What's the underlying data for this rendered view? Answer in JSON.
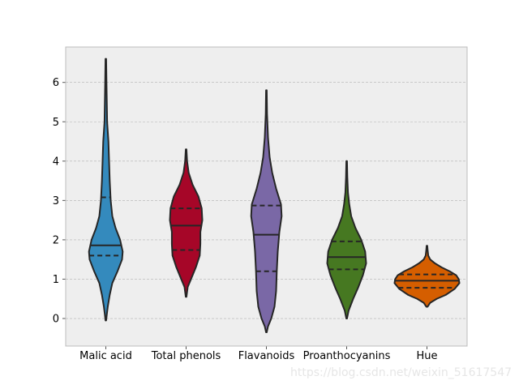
{
  "chart_data": {
    "type": "violin",
    "title": "",
    "xlabel": "",
    "ylabel": "",
    "ylim": [
      -0.7,
      6.9
    ],
    "yticks": [
      0,
      1,
      2,
      3,
      4,
      5,
      6
    ],
    "ytick_labels": [
      "0",
      "1",
      "2",
      "3",
      "4",
      "5",
      "6"
    ],
    "grid": true,
    "legend": "none",
    "categories": [
      "Malic acid",
      "Total phenols",
      "Flavanoids",
      "Proanthocyanins",
      "Hue"
    ],
    "series": [
      {
        "category": "Malic acid",
        "color": "#348abd",
        "quartiles": [
          1.6,
          1.86,
          3.08
        ],
        "profile": [
          [
            -0.05,
            0.01
          ],
          [
            0.1,
            0.03
          ],
          [
            0.3,
            0.06
          ],
          [
            0.6,
            0.12
          ],
          [
            0.9,
            0.2
          ],
          [
            1.2,
            0.36
          ],
          [
            1.5,
            0.5
          ],
          [
            1.7,
            0.52
          ],
          [
            2.0,
            0.44
          ],
          [
            2.3,
            0.3
          ],
          [
            2.6,
            0.2
          ],
          [
            3.0,
            0.15
          ],
          [
            3.5,
            0.12
          ],
          [
            4.0,
            0.1
          ],
          [
            4.5,
            0.08
          ],
          [
            5.0,
            0.04
          ],
          [
            5.5,
            0.03
          ],
          [
            6.0,
            0.02
          ],
          [
            6.6,
            0.01
          ]
        ]
      },
      {
        "category": "Total phenols",
        "color": "#a60628",
        "quartiles": [
          1.74,
          2.36,
          2.8
        ],
        "profile": [
          [
            0.55,
            0.01
          ],
          [
            0.8,
            0.05
          ],
          [
            1.0,
            0.15
          ],
          [
            1.3,
            0.3
          ],
          [
            1.6,
            0.42
          ],
          [
            1.9,
            0.44
          ],
          [
            2.2,
            0.44
          ],
          [
            2.5,
            0.5
          ],
          [
            2.8,
            0.48
          ],
          [
            3.1,
            0.38
          ],
          [
            3.4,
            0.2
          ],
          [
            3.7,
            0.08
          ],
          [
            4.0,
            0.03
          ],
          [
            4.3,
            0.01
          ]
        ]
      },
      {
        "category": "Flavanoids",
        "color": "#7a68a6",
        "quartiles": [
          1.2,
          2.13,
          2.87
        ],
        "profile": [
          [
            -0.35,
            0.01
          ],
          [
            -0.2,
            0.05
          ],
          [
            0.0,
            0.15
          ],
          [
            0.3,
            0.25
          ],
          [
            0.7,
            0.3
          ],
          [
            1.2,
            0.32
          ],
          [
            1.7,
            0.35
          ],
          [
            2.2,
            0.4
          ],
          [
            2.6,
            0.47
          ],
          [
            2.9,
            0.45
          ],
          [
            3.3,
            0.3
          ],
          [
            3.7,
            0.18
          ],
          [
            4.1,
            0.1
          ],
          [
            4.6,
            0.05
          ],
          [
            5.2,
            0.02
          ],
          [
            5.8,
            0.01
          ]
        ]
      },
      {
        "category": "Proanthocyanins",
        "color": "#467821",
        "quartiles": [
          1.25,
          1.56,
          1.96
        ],
        "profile": [
          [
            0.0,
            0.01
          ],
          [
            0.2,
            0.06
          ],
          [
            0.5,
            0.2
          ],
          [
            0.8,
            0.36
          ],
          [
            1.1,
            0.5
          ],
          [
            1.4,
            0.6
          ],
          [
            1.7,
            0.57
          ],
          [
            2.0,
            0.45
          ],
          [
            2.3,
            0.27
          ],
          [
            2.6,
            0.14
          ],
          [
            2.9,
            0.08
          ],
          [
            3.2,
            0.04
          ],
          [
            3.6,
            0.02
          ],
          [
            4.0,
            0.01
          ]
        ]
      },
      {
        "category": "Hue",
        "color": "#d55e00",
        "quartiles": [
          0.78,
          0.96,
          1.12
        ],
        "profile": [
          [
            0.3,
            0.02
          ],
          [
            0.4,
            0.1
          ],
          [
            0.5,
            0.3
          ],
          [
            0.6,
            0.58
          ],
          [
            0.75,
            0.85
          ],
          [
            0.9,
            1.0
          ],
          [
            1.0,
            0.98
          ],
          [
            1.1,
            0.9
          ],
          [
            1.2,
            0.7
          ],
          [
            1.3,
            0.45
          ],
          [
            1.4,
            0.25
          ],
          [
            1.5,
            0.1
          ],
          [
            1.6,
            0.04
          ],
          [
            1.75,
            0.02
          ],
          [
            1.85,
            0.01
          ]
        ]
      }
    ]
  },
  "watermark": "https://blog.csdn.net/weixin_51617547"
}
